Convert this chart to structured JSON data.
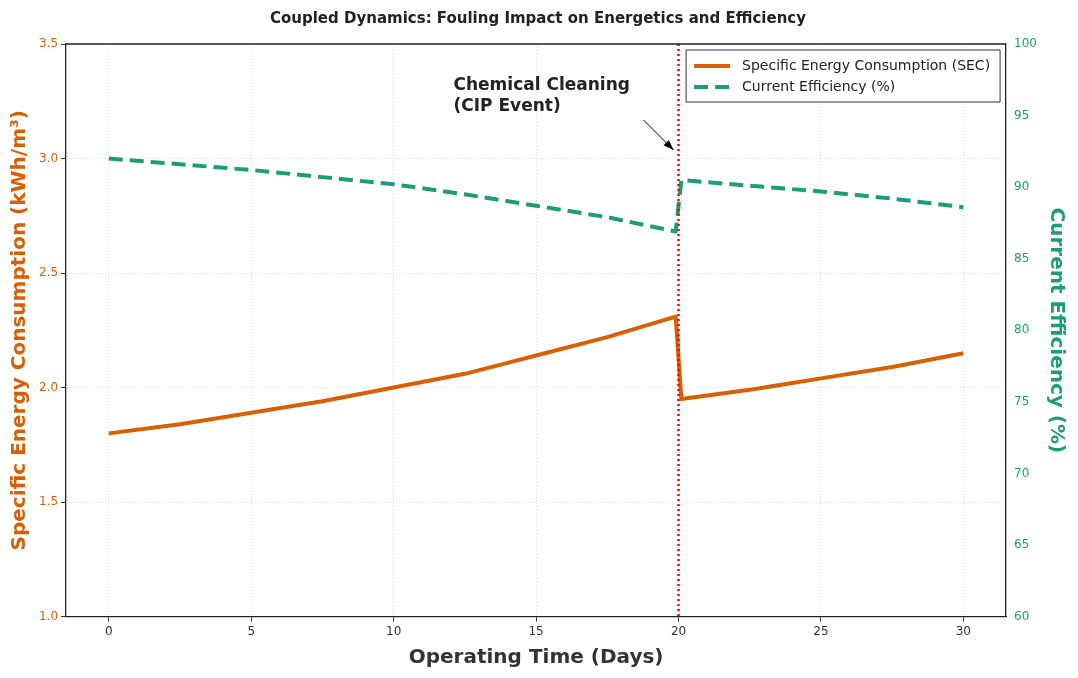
{
  "chart_data": {
    "type": "line",
    "title": "Coupled Dynamics: Fouling Impact on Energetics and Efficiency",
    "xlabel": "Operating Time (Days)",
    "ylabel": "Specific Energy Consumption (kWh/m³)",
    "y2label": "Current Efficiency (%)",
    "series": [
      {
        "name": "Specific Energy Consumption (SEC)",
        "color": "#d95f02",
        "line_style": "solid",
        "x": [
          0,
          2.5,
          5,
          7.5,
          10,
          12.5,
          15,
          17.5,
          19.9,
          20.1,
          22.5,
          25,
          27.5,
          30
        ],
        "values": [
          1.8,
          1.84,
          1.89,
          1.94,
          2.0,
          2.06,
          2.14,
          2.22,
          2.31,
          1.95,
          1.99,
          2.04,
          2.09,
          2.15
        ]
      },
      {
        "name": "Current Efficiency (%)",
        "color": "#1b9e77",
        "line_style": "dashed",
        "axis": "y2",
        "x": [
          0,
          2.5,
          5,
          7.5,
          10,
          12.5,
          15,
          17.5,
          19.9,
          20.1,
          22.5,
          25,
          27.5,
          30
        ],
        "values": [
          92,
          91.6,
          91.2,
          90.7,
          90.2,
          89.5,
          88.7,
          87.9,
          86.9,
          90.5,
          90.1,
          89.7,
          89.2,
          88.6
        ]
      }
    ],
    "xlim": [
      -1.5,
      31.5
    ],
    "xticks": [
      0,
      5,
      10,
      15,
      20,
      25,
      30
    ],
    "ylim": [
      1.0,
      3.5
    ],
    "yticks": [
      {
        "value": 1,
        "label": "1.0"
      },
      1.5,
      {
        "value": 2,
        "label": "2.0"
      },
      2.5,
      {
        "value": 3,
        "label": "3.0"
      },
      3.5
    ],
    "y2lim": [
      60,
      100
    ],
    "y2ticks": [
      60,
      65,
      70,
      75,
      80,
      85,
      90,
      95,
      100
    ],
    "ref_lines": [
      {
        "axis": "x",
        "value": 20,
        "color": "#ff0000",
        "line_style": "dotted"
      }
    ],
    "annotations": [
      "Chemical Cleaning\n(CIP Event)"
    ],
    "grid": true,
    "legend": "top right",
    "marker": "none"
  }
}
